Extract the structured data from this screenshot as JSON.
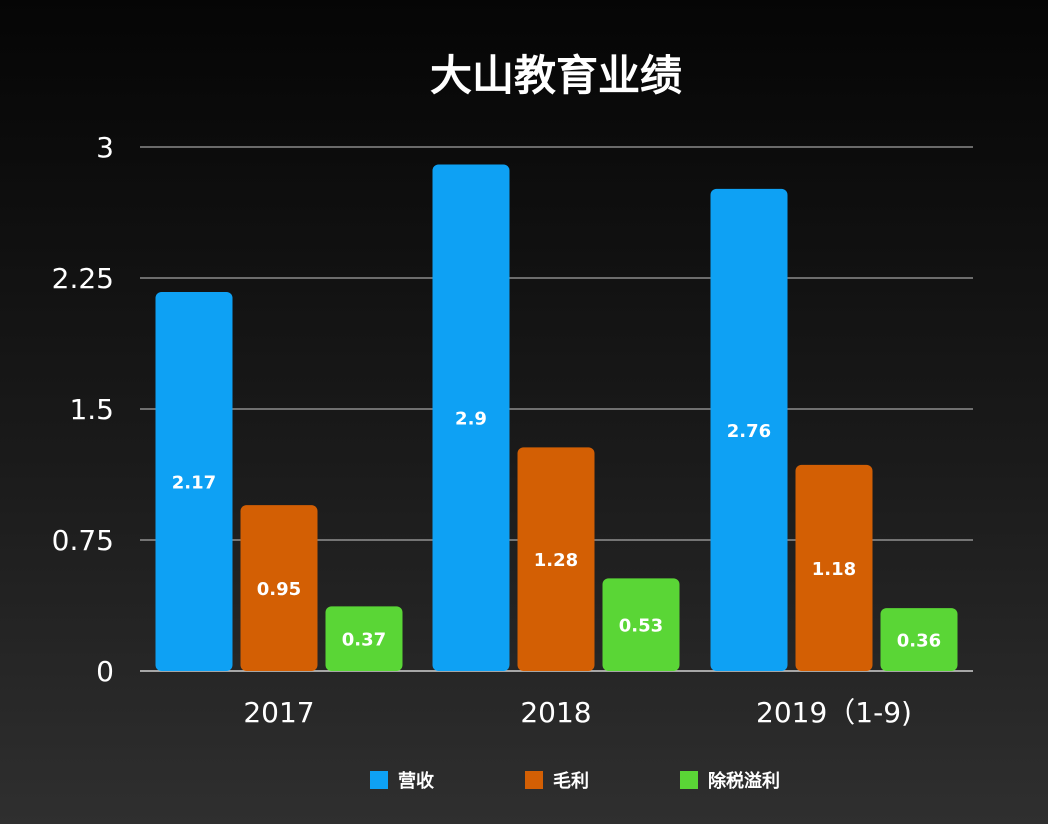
{
  "chart_data": {
    "type": "bar",
    "title": "大山教育业绩",
    "xlabel": "",
    "ylabel": "",
    "categories": [
      "2017",
      "2018",
      "2019（1-9)"
    ],
    "series": [
      {
        "name": "营收",
        "color": "#0ea1f4",
        "values": [
          2.17,
          2.9,
          2.76
        ]
      },
      {
        "name": "毛利",
        "color": "#d35f04",
        "values": [
          0.95,
          1.28,
          1.18
        ]
      },
      {
        "name": "除税溢利",
        "color": "#5ad636",
        "values": [
          0.37,
          0.53,
          0.36
        ]
      }
    ],
    "ylim": [
      0,
      3
    ],
    "yticks": [
      0,
      0.75,
      1.5,
      2.25,
      3
    ],
    "ytick_labels": [
      "0",
      "0.75",
      "1.5",
      "2.25",
      "3"
    ],
    "grid": true,
    "legend_position": "bottom-center"
  }
}
